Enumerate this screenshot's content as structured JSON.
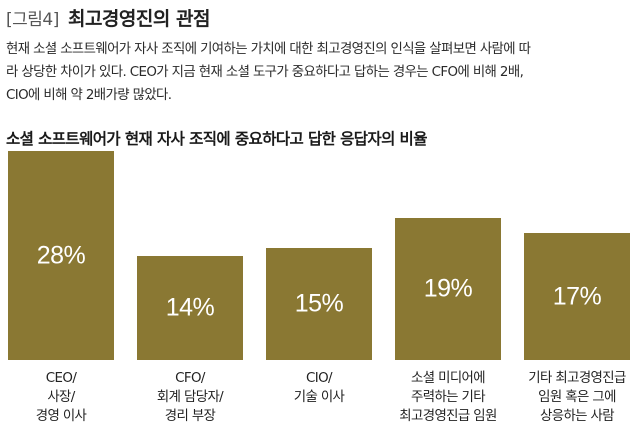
{
  "header": {
    "tag": "[그림4]",
    "title": "최고경영진의 관점"
  },
  "description_lines": [
    "현재 소셜 소프트웨어가 자사 조직에 기여하는 가치에 대한 최고경영진의 인식을 살펴보면 사람에 따",
    "라 상당한 차이가 있다. CEO가 지금 현재 소셜 도구가 중요하다고 답하는 경우는 CFO에 비해 2배,",
    "CIO에 비해 약 2배가량 많았다."
  ],
  "chart_data": {
    "type": "bar",
    "title": "소셜 소프트웨어가 현재 자사 조직에 중요하다고 답한 응답자의 비율",
    "categories": [
      [
        "CEO/",
        "사장/",
        "경영 이사"
      ],
      [
        "CFO/",
        "회계 담당자/",
        "경리 부장"
      ],
      [
        "CIO/",
        "기술 이사"
      ],
      [
        "소셜 미디어에",
        "주력하는 기타",
        "최고경영진급 임원"
      ],
      [
        "기타 최고경영진급",
        "임원 혹은 그에",
        "상응하는 사람"
      ]
    ],
    "values": [
      28,
      14,
      15,
      19,
      17
    ],
    "value_labels": [
      "28%",
      "14%",
      "15%",
      "19%",
      "17%"
    ],
    "unit": "%",
    "bar_color": "#8a7833",
    "label_color": "#ffffff",
    "grid": false,
    "legend": "none"
  }
}
